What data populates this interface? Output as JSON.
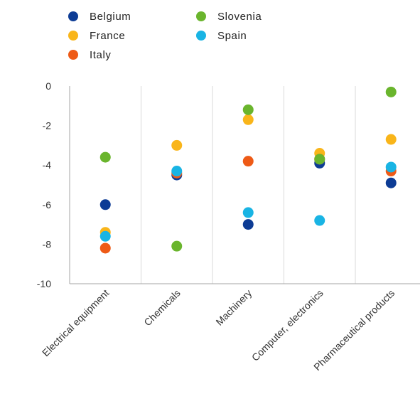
{
  "chart_data": {
    "type": "scatter",
    "categories": [
      "Electrical equipment",
      "Chemicals",
      "Machinery",
      "Computer, electronics",
      "Pharmaceutical products"
    ],
    "ylim": [
      -10,
      0
    ],
    "yticks": [
      0,
      -2,
      -4,
      -6,
      -8,
      -10
    ],
    "ytick_labels": [
      "0",
      "-2",
      "-4",
      "-6",
      "-8",
      "-10"
    ],
    "legend_position": "top",
    "grid": "vertical separators",
    "series": [
      {
        "name": "Belgium",
        "color": "#0d3c95",
        "values": [
          -6.0,
          -4.5,
          -7.0,
          -3.9,
          -4.9
        ]
      },
      {
        "name": "France",
        "color": "#f9b51a",
        "values": [
          -7.4,
          -3.0,
          -1.7,
          -3.4,
          -2.7
        ]
      },
      {
        "name": "Italy",
        "color": "#ee5a16",
        "values": [
          -8.2,
          -4.4,
          -3.8,
          -3.7,
          -4.3
        ]
      },
      {
        "name": "Slovenia",
        "color": "#6ab52d",
        "values": [
          -3.6,
          -8.1,
          -1.2,
          -3.7,
          -0.3
        ]
      },
      {
        "name": "Spain",
        "color": "#19b4e4",
        "values": [
          -7.6,
          -4.3,
          -6.4,
          -6.8,
          -4.1
        ]
      }
    ]
  }
}
